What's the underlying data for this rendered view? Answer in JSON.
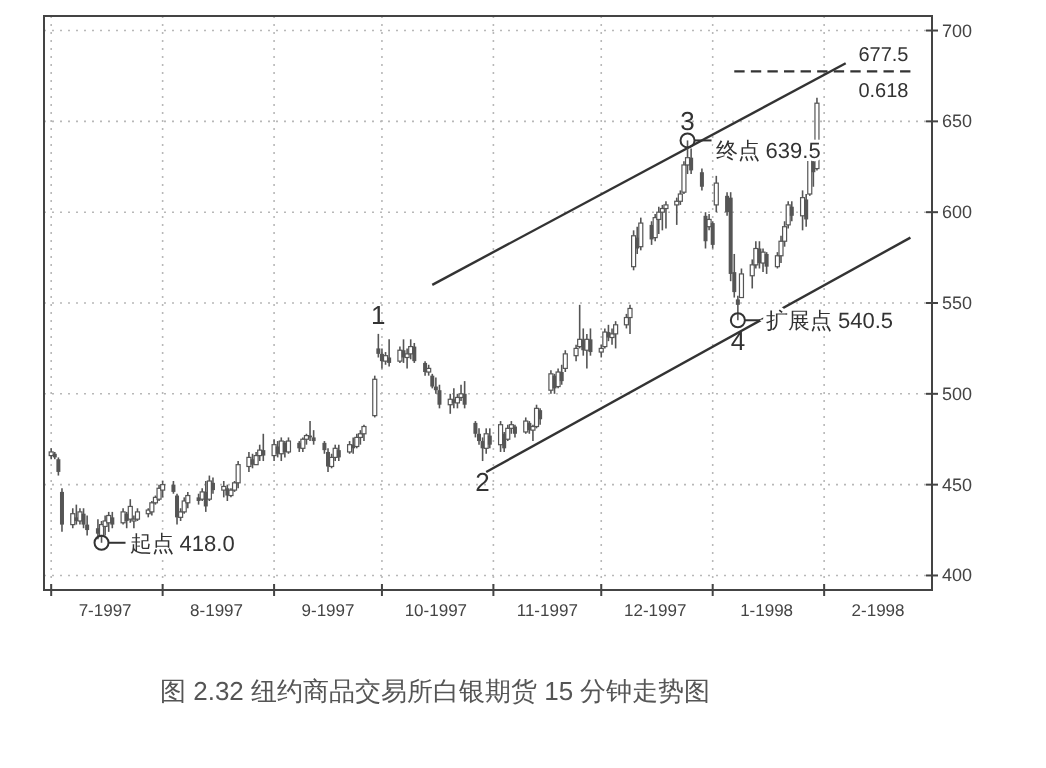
{
  "chart_data": {
    "type": "candlestick",
    "title": "图 2.32  纽约商品交易所白银期货 15 分钟走势图",
    "color": "#555555",
    "xlim": [
      "1997-06-29",
      "1998-03-03"
    ],
    "ylim": [
      392,
      708
    ],
    "yticks": [
      400,
      450,
      500,
      550,
      600,
      650,
      700
    ],
    "xticks": [
      {
        "value": "1997-07-01",
        "label": null
      },
      {
        "value": "1997-08-01",
        "label": null
      },
      {
        "value": "1997-09-01",
        "label": null
      },
      {
        "value": "1997-10-01",
        "label": null
      },
      {
        "value": "1997-11-01",
        "label": null
      },
      {
        "value": "1997-12-01",
        "label": null
      },
      {
        "value": "1998-01-01",
        "label": null
      },
      {
        "value": "1998-02-01",
        "label": null
      },
      {
        "value": "1997-07-16",
        "label": "7-1997"
      },
      {
        "value": "1997-08-16",
        "label": "8-1997"
      },
      {
        "value": "1997-09-16",
        "label": "9-1997"
      },
      {
        "value": "1997-10-16",
        "label": "10-1997"
      },
      {
        "value": "1997-11-16",
        "label": "11-1997"
      },
      {
        "value": "1997-12-16",
        "label": "12-1997"
      },
      {
        "value": "1998-01-16",
        "label": "1-1998"
      },
      {
        "value": "1998-02-16",
        "label": "2-1998"
      }
    ],
    "grid": true,
    "x": [
      "1997-07-01",
      "1997-07-02",
      "1997-07-03",
      "1997-07-04",
      "1997-07-07",
      "1997-07-08",
      "1997-07-09",
      "1997-07-10",
      "1997-07-11",
      "1997-07-14",
      "1997-07-15",
      "1997-07-16",
      "1997-07-17",
      "1997-07-18",
      "1997-07-21",
      "1997-07-22",
      "1997-07-23",
      "1997-07-24",
      "1997-07-25",
      "1997-07-28",
      "1997-07-29",
      "1997-07-30",
      "1997-07-31",
      "1997-08-01",
      "1997-08-04",
      "1997-08-05",
      "1997-08-06",
      "1997-08-07",
      "1997-08-08",
      "1997-08-11",
      "1997-08-12",
      "1997-08-13",
      "1997-08-14",
      "1997-08-15",
      "1997-08-18",
      "1997-08-19",
      "1997-08-20",
      "1997-08-21",
      "1997-08-22",
      "1997-08-25",
      "1997-08-26",
      "1997-08-27",
      "1997-08-28",
      "1997-08-29",
      "1997-09-01",
      "1997-09-02",
      "1997-09-03",
      "1997-09-04",
      "1997-09-05",
      "1997-09-08",
      "1997-09-09",
      "1997-09-10",
      "1997-09-11",
      "1997-09-12",
      "1997-09-15",
      "1997-09-16",
      "1997-09-17",
      "1997-09-18",
      "1997-09-19",
      "1997-09-22",
      "1997-09-23",
      "1997-09-24",
      "1997-09-25",
      "1997-09-26",
      "1997-09-29",
      "1997-09-30",
      "1997-10-01",
      "1997-10-02",
      "1997-10-03",
      "1997-10-06",
      "1997-10-07",
      "1997-10-08",
      "1997-10-09",
      "1997-10-10",
      "1997-10-13",
      "1997-10-14",
      "1997-10-15",
      "1997-10-16",
      "1997-10-17",
      "1997-10-20",
      "1997-10-21",
      "1997-10-22",
      "1997-10-23",
      "1997-10-24",
      "1997-10-27",
      "1997-10-28",
      "1997-10-29",
      "1997-10-30",
      "1997-10-31",
      "1997-11-03",
      "1997-11-04",
      "1997-11-05",
      "1997-11-06",
      "1997-11-07",
      "1997-11-10",
      "1997-11-11",
      "1997-11-12",
      "1997-11-13",
      "1997-11-14",
      "1997-11-17",
      "1997-11-18",
      "1997-11-19",
      "1997-11-20",
      "1997-11-21",
      "1997-11-24",
      "1997-11-25",
      "1997-11-26",
      "1997-11-27",
      "1997-11-28",
      "1997-12-01",
      "1997-12-02",
      "1997-12-03",
      "1997-12-04",
      "1997-12-05",
      "1997-12-08",
      "1997-12-09",
      "1997-12-10",
      "1997-12-11",
      "1997-12-12",
      "1997-12-15",
      "1997-12-16",
      "1997-12-17",
      "1997-12-18",
      "1997-12-19",
      "1997-12-22",
      "1997-12-23",
      "1997-12-24",
      "1997-12-25",
      "1997-12-26",
      "1997-12-29",
      "1997-12-30",
      "1997-12-31",
      "1998-01-01",
      "1998-01-02",
      "1998-01-05",
      "1998-01-06",
      "1998-01-07",
      "1998-01-08",
      "1998-01-09",
      "1998-01-12",
      "1998-01-13",
      "1998-01-14",
      "1998-01-15",
      "1998-01-16",
      "1998-01-19",
      "1998-01-20",
      "1998-01-21",
      "1998-01-22",
      "1998-01-23",
      "1998-01-26",
      "1998-01-27",
      "1998-01-28",
      "1998-01-29",
      "1998-01-30"
    ],
    "ohlc": [
      [
        466,
        470,
        464,
        468
      ],
      [
        467,
        468,
        464,
        465
      ],
      [
        464,
        465,
        455,
        457
      ],
      [
        446,
        448,
        424,
        428
      ],
      [
        428,
        437,
        426,
        434
      ],
      [
        432,
        439,
        428,
        430
      ],
      [
        430,
        437,
        428,
        435
      ],
      [
        434,
        437,
        426,
        428
      ],
      [
        428,
        433,
        422,
        425
      ],
      [
        426,
        431,
        420,
        423
      ],
      [
        422,
        430,
        418,
        428
      ],
      [
        427,
        433,
        422,
        430
      ],
      [
        429,
        435,
        424,
        433
      ],
      [
        432,
        435,
        426,
        428
      ],
      [
        429,
        437,
        428,
        435
      ],
      [
        434,
        435,
        426,
        430
      ],
      [
        431,
        442,
        429,
        438
      ],
      [
        430,
        433,
        426,
        431
      ],
      [
        431,
        437,
        430,
        435
      ],
      [
        434,
        437,
        432,
        436
      ],
      [
        435,
        441,
        433,
        440
      ],
      [
        440,
        444,
        439,
        443
      ],
      [
        442,
        450,
        441,
        448
      ],
      [
        447,
        452,
        443,
        450
      ],
      [
        450,
        452,
        445,
        446
      ],
      [
        444,
        445,
        428,
        432
      ],
      [
        432,
        437,
        430,
        435
      ],
      [
        435,
        443,
        434,
        441
      ],
      [
        440,
        446,
        437,
        444
      ],
      [
        443,
        445,
        439,
        441
      ],
      [
        442,
        448,
        441,
        446
      ],
      [
        446,
        452,
        435,
        438
      ],
      [
        442,
        455,
        441,
        452
      ],
      [
        451,
        454,
        445,
        447
      ],
      [
        447,
        452,
        443,
        449
      ],
      [
        448,
        450,
        441,
        444
      ],
      [
        444,
        448,
        443,
        447
      ],
      [
        447,
        452,
        446,
        451
      ],
      [
        451,
        463,
        448,
        461
      ],
      [
        460,
        468,
        457,
        465
      ],
      [
        464,
        467,
        459,
        461
      ],
      [
        461,
        468,
        461,
        466
      ],
      [
        466,
        472,
        463,
        469
      ],
      [
        469,
        478,
        463,
        466
      ],
      [
        466,
        475,
        463,
        472
      ],
      [
        471,
        474,
        465,
        467
      ],
      [
        467,
        476,
        463,
        474
      ],
      [
        473,
        474,
        465,
        468
      ],
      [
        468,
        476,
        467,
        474
      ],
      [
        473,
        474,
        468,
        470
      ],
      [
        470,
        476,
        468,
        475
      ],
      [
        475,
        478,
        472,
        477
      ],
      [
        477,
        485,
        474,
        476
      ],
      [
        476,
        480,
        472,
        474
      ],
      [
        473,
        474,
        467,
        469
      ],
      [
        468,
        470,
        457,
        460
      ],
      [
        460,
        467,
        459,
        465
      ],
      [
        465,
        472,
        463,
        470
      ],
      [
        469,
        472,
        463,
        465
      ],
      [
        468,
        474,
        467,
        472
      ],
      [
        472,
        476,
        467,
        470
      ],
      [
        471,
        478,
        470,
        476
      ],
      [
        476,
        480,
        472,
        478
      ],
      [
        478,
        483,
        474,
        482
      ],
      [
        488,
        510,
        487,
        508
      ],
      [
        525,
        533,
        520,
        522
      ],
      [
        522,
        525,
        514,
        518
      ],
      [
        518,
        523,
        516,
        521
      ],
      [
        520,
        530,
        515,
        517
      ],
      [
        518,
        526,
        517,
        524
      ],
      [
        524,
        530,
        517,
        520
      ],
      [
        520,
        525,
        514,
        522
      ],
      [
        522,
        530,
        519,
        526
      ],
      [
        526,
        528,
        517,
        518
      ],
      [
        517,
        518,
        510,
        512
      ],
      [
        512,
        516,
        510,
        514
      ],
      [
        510,
        511,
        503,
        504
      ],
      [
        504,
        509,
        500,
        502
      ],
      [
        502,
        505,
        492,
        494
      ],
      [
        494,
        500,
        489,
        497
      ],
      [
        497,
        503,
        492,
        495
      ],
      [
        495,
        500,
        492,
        498
      ],
      [
        498,
        505,
        496,
        500
      ],
      [
        500,
        507,
        492,
        494
      ],
      [
        484,
        485,
        476,
        478
      ],
      [
        478,
        481,
        472,
        474
      ],
      [
        474,
        476,
        463,
        470
      ],
      [
        470,
        481,
        467,
        478
      ],
      [
        477,
        481,
        470,
        472
      ],
      [
        472,
        485,
        468,
        483
      ],
      [
        478,
        479,
        468,
        470
      ],
      [
        475,
        483,
        474,
        481
      ],
      [
        481,
        485,
        478,
        483
      ],
      [
        482,
        483,
        476,
        478
      ],
      [
        479,
        487,
        478,
        485
      ],
      [
        484,
        485,
        478,
        480
      ],
      [
        480,
        483,
        474,
        482
      ],
      [
        482,
        494,
        481,
        492
      ],
      [
        491,
        492,
        483,
        486
      ],
      [
        502,
        513,
        500,
        511
      ],
      [
        510,
        511,
        500,
        503
      ],
      [
        504,
        514,
        503,
        512
      ],
      [
        512,
        516,
        505,
        507
      ],
      [
        514,
        524,
        512,
        522
      ],
      [
        521,
        527,
        518,
        525
      ],
      [
        526,
        549,
        525,
        530
      ],
      [
        530,
        536,
        521,
        524
      ],
      [
        524,
        533,
        514,
        530
      ],
      [
        530,
        536,
        521,
        523
      ],
      [
        523,
        527,
        520,
        525
      ],
      [
        526,
        536,
        525,
        534
      ],
      [
        534,
        538,
        529,
        531
      ],
      [
        531,
        536,
        527,
        533
      ],
      [
        533,
        540,
        525,
        538
      ],
      [
        538,
        544,
        536,
        542
      ],
      [
        542,
        549,
        533,
        547
      ],
      [
        570,
        590,
        568,
        587
      ],
      [
        586,
        592,
        577,
        580
      ],
      [
        581,
        597,
        579,
        594
      ],
      [
        593,
        595,
        582,
        585
      ],
      [
        586,
        599,
        584,
        597
      ],
      [
        596,
        603,
        588,
        600
      ],
      [
        600,
        604,
        590,
        602
      ],
      [
        602,
        606,
        591,
        604
      ],
      [
        604,
        608,
        593,
        606
      ],
      [
        606,
        612,
        604,
        610
      ],
      [
        611,
        628,
        610,
        626
      ],
      [
        626,
        639.5,
        621,
        630
      ],
      [
        630,
        635,
        621,
        623
      ],
      [
        622,
        624,
        612,
        614
      ],
      [
        598,
        600,
        580,
        584
      ],
      [
        592,
        599,
        590,
        596
      ],
      [
        594,
        595,
        580,
        582
      ],
      [
        604,
        620,
        600,
        616
      ],
      [
        609,
        611,
        598,
        600
      ],
      [
        608,
        611,
        562,
        566
      ],
      [
        567,
        577,
        553,
        556
      ],
      [
        552,
        554,
        540.5,
        549
      ],
      [
        553,
        569,
        553,
        566
      ],
      [
        565,
        574,
        558,
        571
      ],
      [
        571,
        584,
        569,
        580
      ],
      [
        580,
        584,
        569,
        572
      ],
      [
        572,
        580,
        567,
        578
      ],
      [
        577,
        578,
        566,
        570
      ],
      [
        570,
        578,
        569,
        576
      ],
      [
        576,
        587,
        572,
        584
      ],
      [
        584,
        595,
        581,
        592
      ],
      [
        593,
        606,
        591,
        604
      ],
      [
        603,
        606,
        595,
        598
      ],
      [
        598,
        612,
        590,
        608
      ],
      [
        607,
        610,
        592,
        596
      ],
      [
        610,
        636,
        609,
        632
      ],
      [
        628,
        630,
        614,
        622
      ],
      [
        624,
        663,
        623,
        660
      ]
    ],
    "series": [
      {
        "type": "line",
        "color": "#333333",
        "x": [
          "1997-10-15",
          "1998-02-07"
        ],
        "values": [
          560,
          682
        ]
      },
      {
        "type": "line",
        "color": "#333333",
        "x": [
          "1997-10-30",
          "1998-02-25"
        ],
        "values": [
          457,
          586
        ]
      },
      {
        "type": "line",
        "color": "#333333",
        "line_style": "dashed",
        "x": [
          "1998-01-07",
          "1998-02-25"
        ],
        "values": [
          677.5,
          677.5
        ]
      }
    ],
    "annotations": [
      {
        "text": "起点 418.0",
        "x": "1997-07-15",
        "y": 418
      },
      {
        "text": "1",
        "x": "1997-09-30",
        "y": 533
      },
      {
        "text": "2",
        "x": "1997-10-29",
        "y": 463
      },
      {
        "text": "3",
        "x": "1997-12-25",
        "y": 639.5
      },
      {
        "text": "终点 639.5",
        "x": "1997-12-25",
        "y": 639.5
      },
      {
        "text": "4",
        "x": "1998-01-08",
        "y": 540.5
      },
      {
        "text": "扩展点 540.5",
        "x": "1998-01-08",
        "y": 540.5
      },
      {
        "text": "677.5",
        "x": "1998-02-25",
        "y": 677.5
      },
      {
        "text": "0.618",
        "x": "1998-02-25",
        "y": 677.5
      }
    ]
  }
}
